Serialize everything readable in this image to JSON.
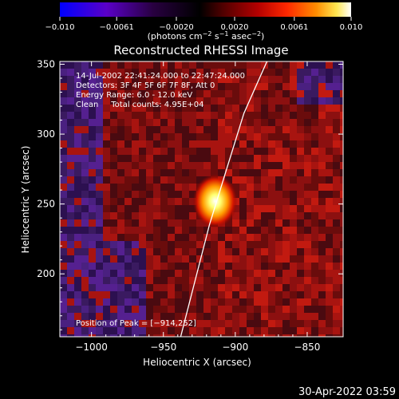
{
  "colorbar": {
    "ticks": [
      "−0.010",
      "−0.0061",
      "−0.0020",
      "0.0020",
      "0.0061",
      "0.010"
    ],
    "tick_values": [
      -0.01,
      -0.0061,
      -0.002,
      0.002,
      0.0061,
      0.01
    ],
    "range": [
      -0.01,
      0.01
    ],
    "unit_parts": [
      "(photons cm",
      "−2",
      " s",
      "−1",
      " asec",
      "−2",
      ")"
    ],
    "colormap": [
      "#0000ff",
      "#5a00c8",
      "#280040",
      "#000000",
      "#500000",
      "#b40000",
      "#ff2800",
      "#ff8c00",
      "#ffe650",
      "#ffffff"
    ]
  },
  "chart_data": {
    "type": "heatmap",
    "title": "Reconstructed RHESSI Image",
    "xlabel": "Heliocentric X (arcsec)",
    "ylabel": "Heliocentric Y (arcsec)",
    "xlim": [
      -1022,
      -825
    ],
    "ylim": [
      155,
      352
    ],
    "x_ticks": [
      -1000,
      -950,
      -900,
      -850
    ],
    "x_tick_labels": [
      "−1000",
      "−950",
      "−900",
      "−850"
    ],
    "y_ticks": [
      200,
      250,
      300,
      350
    ],
    "y_tick_labels": [
      "200",
      "250",
      "300",
      "350"
    ],
    "peak": {
      "x": -914,
      "y": 252
    },
    "info_lines": [
      "14-Jul-2002 22:41:24.000 to 22:47:24.000",
      "Detectors: 3F 4F 5F 6F 7F 8F, Att 0",
      "Energy Range: 6.0 - 12.0 keV",
      "Clean     Total counts: 4.95E+04"
    ],
    "peak_label": "Position of Peak = [−914,252]",
    "limb_curve": [
      [
        -938,
        155
      ],
      [
        -928,
        195
      ],
      [
        -918,
        235
      ],
      [
        -906,
        275
      ],
      [
        -894,
        315
      ],
      [
        -878,
        352
      ]
    ]
  },
  "timestamp": "30-Apr-2022 03:59"
}
